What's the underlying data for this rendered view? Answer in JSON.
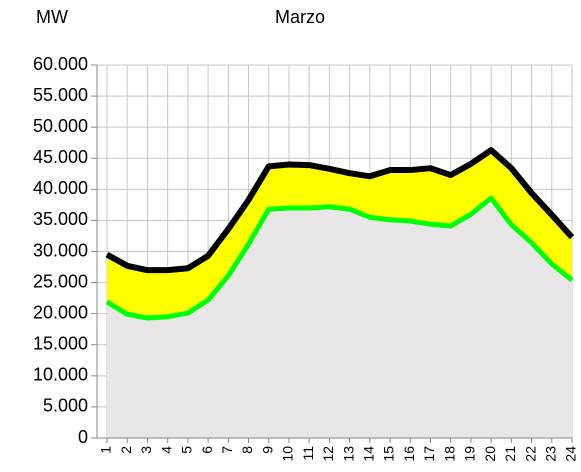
{
  "chart_data": {
    "type": "area-band",
    "title": "Marzo",
    "y_label": "MW",
    "categories": [
      "1",
      "2",
      "3",
      "4",
      "5",
      "6",
      "7",
      "8",
      "9",
      "10",
      "11",
      "12",
      "13",
      "14",
      "15",
      "16",
      "17",
      "18",
      "19",
      "20",
      "21",
      "22",
      "23",
      "24"
    ],
    "series": [
      {
        "color": "#000000",
        "values": [
          29500,
          27700,
          27000,
          27000,
          27300,
          29300,
          33600,
          38300,
          43700,
          44000,
          43900,
          43300,
          42600,
          42100,
          43100,
          43100,
          43400,
          42300,
          44100,
          46300,
          43400,
          39400,
          35900,
          32300
        ]
      },
      {
        "color": "#00ff00",
        "values": [
          21900,
          19900,
          19300,
          19500,
          20100,
          22200,
          26100,
          31200,
          36800,
          37000,
          37000,
          37200,
          36800,
          35500,
          35100,
          34900,
          34400,
          34100,
          36000,
          38600,
          34300,
          31400,
          28000,
          25400
        ]
      }
    ],
    "band_color": "#ffff00",
    "base_color": "#e8e6e6",
    "ylim": [
      0,
      60000
    ],
    "yticks": [
      0,
      {
        "value": 5000,
        "label": "5.000"
      },
      {
        "value": 10000,
        "label": "10.000"
      },
      {
        "value": 15000,
        "label": "15.000"
      },
      {
        "value": 20000,
        "label": "20.000"
      },
      {
        "value": 25000,
        "label": "25.000"
      },
      {
        "value": 30000,
        "label": "30.000"
      },
      {
        "value": 35000,
        "label": "35.000"
      },
      {
        "value": 40000,
        "label": "40.000"
      },
      {
        "value": 45000,
        "label": "45.000"
      },
      {
        "value": 50000,
        "label": "50.000"
      },
      {
        "value": 55000,
        "label": "55.000"
      },
      {
        "value": 60000,
        "label": "60.000"
      }
    ],
    "grid": true
  }
}
